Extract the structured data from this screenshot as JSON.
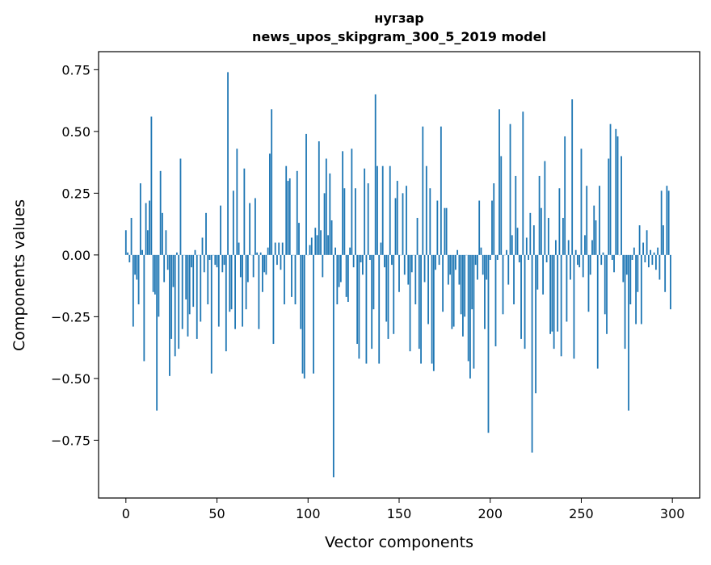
{
  "chart_data": {
    "type": "bar",
    "title_line1": "нугзар",
    "title_line2": "news_upos_skipgram_300_5_2019 model",
    "xlabel": "Vector components",
    "ylabel": "Components values",
    "xlim": [
      -15,
      315
    ],
    "ylim": [
      -0.984,
      0.823
    ],
    "xticks": [
      0,
      50,
      100,
      150,
      200,
      250,
      300
    ],
    "xtick_labels": [
      "0",
      "50",
      "100",
      "150",
      "200",
      "250",
      "300"
    ],
    "yticks": [
      0.75,
      0.5,
      0.25,
      0.0,
      -0.25,
      -0.5,
      -0.75
    ],
    "ytick_labels": [
      "0.75",
      "0.50",
      "0.25",
      "0.00",
      "−0.25",
      "−0.50",
      "−0.75"
    ],
    "grid": false,
    "bar_color": "#1f77b4",
    "values": [
      0.1,
      0.01,
      -0.03,
      0.15,
      -0.29,
      -0.08,
      -0.1,
      -0.2,
      0.29,
      0.02,
      -0.43,
      0.21,
      0.1,
      0.22,
      0.56,
      -0.15,
      -0.16,
      -0.63,
      -0.25,
      0.34,
      0.17,
      -0.11,
      0.1,
      -0.06,
      -0.49,
      -0.34,
      -0.13,
      -0.41,
      0.01,
      -0.38,
      0.39,
      -0.3,
      0.0,
      -0.18,
      -0.33,
      -0.24,
      -0.05,
      -0.21,
      0.02,
      -0.34,
      0.0,
      -0.27,
      0.07,
      -0.07,
      0.17,
      -0.2,
      -0.02,
      -0.48,
      0.0,
      -0.04,
      -0.05,
      -0.29,
      0.2,
      -0.07,
      -0.04,
      -0.39,
      0.74,
      -0.23,
      -0.22,
      0.26,
      -0.3,
      0.43,
      0.05,
      -0.09,
      -0.29,
      0.35,
      -0.22,
      -0.11,
      0.21,
      0.0,
      -0.09,
      0.23,
      0.01,
      -0.3,
      0.01,
      -0.15,
      -0.07,
      -0.08,
      0.03,
      0.41,
      0.59,
      -0.36,
      0.05,
      -0.04,
      0.05,
      -0.06,
      0.05,
      -0.2,
      0.36,
      0.3,
      0.31,
      -0.17,
      0.0,
      -0.2,
      0.34,
      0.13,
      -0.3,
      -0.48,
      -0.5,
      0.49,
      0.0,
      0.04,
      0.07,
      -0.48,
      0.11,
      0.08,
      0.46,
      0.1,
      -0.09,
      0.25,
      0.39,
      0.08,
      0.33,
      0.14,
      -0.9,
      0.03,
      -0.2,
      -0.13,
      -0.11,
      0.42,
      0.27,
      -0.17,
      -0.19,
      0.03,
      0.43,
      -0.05,
      0.27,
      -0.36,
      -0.42,
      -0.03,
      -0.08,
      0.35,
      -0.44,
      0.29,
      -0.02,
      -0.38,
      -0.22,
      0.65,
      0.36,
      -0.44,
      0.05,
      0.36,
      -0.05,
      -0.27,
      -0.34,
      0.36,
      -0.04,
      -0.32,
      0.23,
      0.3,
      -0.15,
      0.0,
      0.25,
      -0.08,
      0.28,
      -0.12,
      -0.39,
      -0.07,
      0.0,
      -0.2,
      0.15,
      -0.38,
      -0.44,
      0.52,
      -0.11,
      0.36,
      -0.28,
      0.27,
      -0.44,
      -0.47,
      -0.06,
      0.22,
      -0.04,
      0.52,
      -0.23,
      0.19,
      0.19,
      -0.12,
      -0.08,
      -0.3,
      -0.29,
      -0.06,
      0.02,
      -0.12,
      -0.24,
      -0.33,
      -0.25,
      0.0,
      -0.43,
      -0.5,
      -0.22,
      -0.46,
      -0.04,
      -0.1,
      0.22,
      0.03,
      -0.08,
      -0.3,
      -0.1,
      -0.72,
      -0.02,
      0.22,
      0.29,
      -0.37,
      -0.02,
      0.59,
      0.4,
      -0.24,
      0.0,
      0.02,
      -0.12,
      0.53,
      0.08,
      -0.2,
      0.32,
      0.11,
      -0.03,
      -0.34,
      0.58,
      -0.38,
      0.07,
      -0.02,
      0.17,
      -0.8,
      0.12,
      -0.56,
      -0.14,
      0.32,
      0.19,
      -0.16,
      0.38,
      -0.03,
      0.15,
      -0.32,
      -0.31,
      -0.38,
      0.06,
      -0.31,
      0.27,
      -0.41,
      0.15,
      0.48,
      -0.27,
      0.06,
      -0.1,
      0.63,
      -0.42,
      0.02,
      -0.04,
      -0.05,
      0.43,
      -0.09,
      0.08,
      0.28,
      -0.23,
      -0.08,
      0.06,
      0.2,
      0.14,
      -0.46,
      0.28,
      -0.04,
      0.01,
      -0.24,
      -0.32,
      0.39,
      0.53,
      -0.02,
      -0.07,
      0.51,
      0.48,
      0.0,
      0.4,
      -0.11,
      -0.38,
      -0.08,
      -0.63,
      -0.2,
      -0.02,
      0.03,
      -0.28,
      -0.15,
      0.12,
      -0.28,
      0.05,
      -0.03,
      0.1,
      -0.05,
      0.02,
      -0.04,
      0.01,
      -0.06,
      0.03,
      -0.1,
      0.26,
      0.12,
      -0.15,
      0.28,
      0.26,
      -0.22
    ]
  }
}
